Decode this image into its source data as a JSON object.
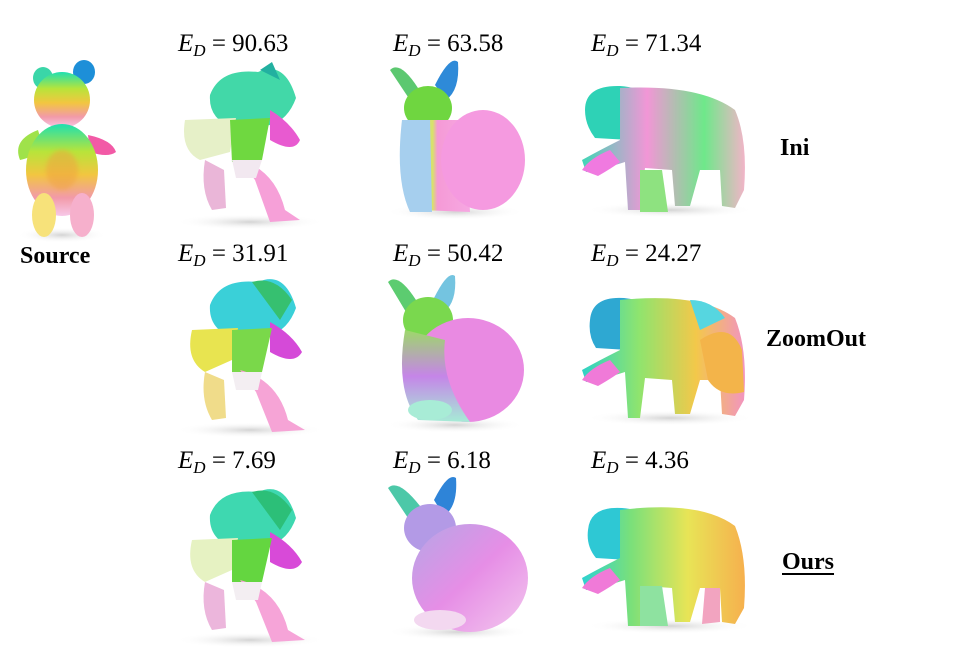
{
  "source_label": "Source",
  "methods": [
    {
      "name": "Ini",
      "underlined": false
    },
    {
      "name": "ZoomOut",
      "underlined": false
    },
    {
      "name": "Ours",
      "underlined": true
    }
  ],
  "metric_symbol": "E",
  "metric_subscript": "D",
  "errors": [
    [
      "90.63",
      "63.58",
      "71.34"
    ],
    [
      "31.91",
      "50.42",
      "24.27"
    ],
    [
      "7.69",
      "6.18",
      "4.36"
    ]
  ],
  "shapes": [
    "teddy-bear",
    "kneeling-figure",
    "rabbit",
    "bear"
  ]
}
